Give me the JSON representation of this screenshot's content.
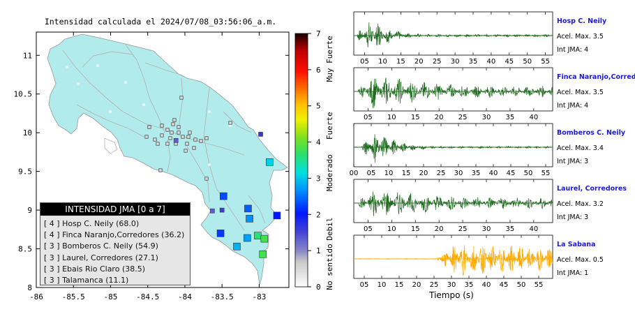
{
  "map": {
    "title": "Intensidad calculada el 2024/07/08_03:56:06_a.m.",
    "x_ticks": [
      "-86",
      "-85.5",
      "-85",
      "-84.5",
      "-84",
      "-83.5",
      "-83"
    ],
    "y_ticks": [
      "11",
      "10.5",
      "10",
      "9.5",
      "9",
      "8.5",
      "8"
    ],
    "xlim": [
      -86,
      -82.6
    ],
    "ylim": [
      8,
      11.3
    ],
    "colorbar": {
      "ticks": [
        "0",
        "1",
        "2",
        "3",
        "4",
        "5",
        "6",
        "7"
      ],
      "labels": [
        "No sentido",
        "Debil",
        "Moderado",
        "Fuerte",
        "Muy Fuerte"
      ]
    }
  },
  "legend": {
    "title": "INTENSIDAD JMA [0 a 7]",
    "rows": [
      "[ 4 ]  Hosp C. Neily (68.0)",
      "[ 4 ]  Finca Naranjo,Corredores (36.2)",
      "[ 3 ]  Bomberos C. Neily (54.9)",
      "[ 3 ]  Laurel, Corredores (27.1)",
      "[ 3 ]  Ebais Rio Claro (38.5)",
      "[ 3 ]  Talamanca (11.1)"
    ]
  },
  "waveforms": [
    {
      "name": "Hosp C. Neily",
      "accel": "Acel. Max. 3.5",
      "int": "Int JMA: 4",
      "color": "#1f6b1f",
      "ticks": [
        "05",
        "10",
        "15",
        "20",
        "25",
        "30",
        "35",
        "40",
        "45",
        "50",
        "55"
      ]
    },
    {
      "name": "Finca Naranjo,Corredores",
      "accel": "Acel. Max. 3.5",
      "int": "Int JMA: 4",
      "color": "#1f6b1f",
      "ticks": [
        "05",
        "10",
        "15",
        "20",
        "25",
        "30",
        "35",
        "40"
      ]
    },
    {
      "name": "Bomberos C. Neily",
      "accel": "Acel. Max. 3.4",
      "int": "Int JMA: 3",
      "color": "#1f6b1f",
      "ticks": [
        "00",
        "05",
        "10",
        "15",
        "20",
        "25",
        "30",
        "35",
        "40",
        "45",
        "50",
        "55"
      ]
    },
    {
      "name": "Laurel, Corredores",
      "accel": "Acel. Max. 3.2",
      "int": "Int JMA: 3",
      "color": "#1f6b1f",
      "ticks": [
        "05",
        "10",
        "15",
        "20",
        "25",
        "30",
        "35",
        "40"
      ]
    },
    {
      "name": "La Sabana",
      "accel": "Acel. Max. 0.5",
      "int": "Int JMA: 1",
      "color": "#ffaa00",
      "ticks": [
        "05",
        "10",
        "15",
        "20",
        "25",
        "30",
        "35",
        "40",
        "45",
        "50",
        "55"
      ]
    }
  ],
  "xaxis_label": "Tiempo (s)",
  "chart_data": {
    "type": "scatter",
    "title": "Intensidad calculada el 2024/07/08_03:56:06_a.m.",
    "xlim": [
      -86,
      -82.6
    ],
    "ylim": [
      8,
      11.3
    ],
    "colorbar_range": [
      0,
      7
    ],
    "stations": [
      {
        "lon": -83.48,
        "lat": 9.18,
        "intensity": 2.3
      },
      {
        "lon": -83.15,
        "lat": 9.02,
        "intensity": 2.4
      },
      {
        "lon": -83.13,
        "lat": 8.89,
        "intensity": 2.7
      },
      {
        "lon": -83.52,
        "lat": 8.7,
        "intensity": 2.2
      },
      {
        "lon": -83.16,
        "lat": 8.64,
        "intensity": 2.8
      },
      {
        "lon": -83.02,
        "lat": 8.67,
        "intensity": 3.6
      },
      {
        "lon": -83.3,
        "lat": 8.53,
        "intensity": 2.9
      },
      {
        "lon": -82.93,
        "lat": 8.63,
        "intensity": 3.8
      },
      {
        "lon": -82.95,
        "lat": 8.43,
        "intensity": 3.8
      },
      {
        "lon": -82.86,
        "lat": 9.62,
        "intensity": 3.1
      },
      {
        "lon": -82.98,
        "lat": 9.98,
        "intensity": 1.6
      },
      {
        "lon": -83.5,
        "lat": 9.0,
        "intensity": 1.5
      },
      {
        "lon": -84.12,
        "lat": 9.9,
        "intensity": 1.3
      },
      {
        "lon": -83.63,
        "lat": 8.99,
        "intensity": 1.3
      },
      {
        "lon": -82.76,
        "lat": 8.93,
        "intensity": 2.0
      }
    ]
  }
}
